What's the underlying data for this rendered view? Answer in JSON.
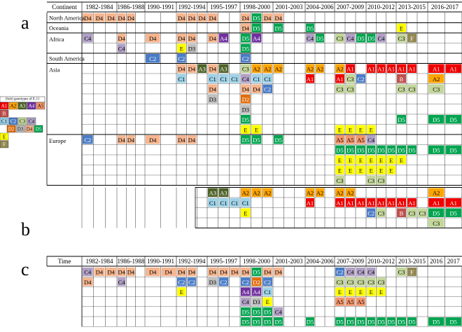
{
  "panel_labels": {
    "a": "a",
    "b": "b",
    "c": "c"
  },
  "legend": {
    "title": "(Sub) genotypes of E-11",
    "rows": [
      [
        "A1",
        "A2",
        "A3",
        "A4",
        "A5"
      ],
      [
        "B"
      ],
      [
        "C1",
        "C2",
        "C3",
        "C4"
      ],
      [
        "D2",
        "D3",
        "D4",
        "D5"
      ],
      [
        "E"
      ],
      [
        "F"
      ]
    ]
  },
  "colors": {
    "A1": "#f00000",
    "A2": "#ffa500",
    "A3": "#4f6228",
    "A4": "#7030a0",
    "A5": "#f4956b",
    "B": "#c0504d",
    "C1": "#9dd2e8",
    "C2": "#4a7cc6",
    "C3": "#c4d79b",
    "C4": "#b1a0c7",
    "D2": "#e36c09",
    "D3": "#bfbfbf",
    "D4": "#f7b58e",
    "D5": "#00a550",
    "E": "#ffff00",
    "F": "#938953"
  },
  "time_columns": [
    "1982-1984",
    "1986-1988",
    "1990-1991",
    "1992-1994",
    "1995-1997",
    "1998-2000",
    "2001-2003",
    "2004-2006",
    "2007-2009",
    "2010-2012",
    "2013-2015",
    "2016-2017"
  ],
  "panel_a": {
    "header_label": "Continent",
    "groups": [
      {
        "name": "North America",
        "rows": [
          [
            [
              "D4",
              "D4",
              "D4"
            ],
            [
              "D4",
              "D4"
            ],
            [],
            [
              "D4",
              "D4",
              "D4"
            ],
            [
              "D4"
            ],
            [
              "D4",
              "D5",
              "D4"
            ],
            [
              "D4"
            ],
            [],
            [],
            [],
            [],
            []
          ]
        ]
      },
      {
        "name": "Oceania",
        "rows": [
          [
            [],
            [],
            [],
            [],
            [],
            [
              "D4",
              "D5"
            ],
            [
              "D5"
            ],
            [
              "D5"
            ],
            [],
            [],
            [
              "E"
            ],
            []
          ]
        ]
      },
      {
        "name": "Africa",
        "rows": [
          [
            [
              "C4"
            ],
            [
              "D4"
            ],
            [
              "D4"
            ],
            [
              "D4",
              "D4"
            ],
            [
              "D4",
              "A4"
            ],
            [
              "D5",
              "A4"
            ],
            [],
            [
              "C4",
              "D5"
            ],
            [
              "C3",
              "C4",
              "D5"
            ],
            [
              "D5",
              "C4"
            ],
            [
              "C3",
              "F"
            ],
            []
          ],
          [
            [],
            [
              "C4"
            ],
            [],
            [
              "E",
              "D3"
            ],
            [],
            [
              "D5"
            ],
            [],
            [],
            [],
            [],
            [],
            []
          ]
        ]
      },
      {
        "name": "South America",
        "rows": [
          [
            [],
            [],
            [
              "C2"
            ],
            [
              "C2"
            ],
            [],
            [
              "C2"
            ],
            [],
            [],
            [],
            [],
            [],
            []
          ]
        ]
      },
      {
        "name": "Asia",
        "rows": [
          [
            [],
            [],
            [],
            [
              "D4",
              "D4",
              "A3"
            ],
            [
              "D4",
              "A3"
            ],
            [
              "C3",
              "A2",
              "A2"
            ],
            [
              "A2"
            ],
            [
              "A2",
              "A2"
            ],
            [
              "A2",
              "A1"
            ],
            [
              "A1",
              "A1",
              "A1"
            ],
            [
              "A1",
              "A1"
            ],
            [
              "A1",
              "A1"
            ]
          ],
          [
            [],
            [],
            [],
            [
              "C1"
            ],
            [
              "C1",
              "C1",
              "C1"
            ],
            [
              "C4",
              "C1",
              "C1"
            ],
            [],
            [
              "A1"
            ],
            [
              "A1",
              "C3",
              "C2"
            ],
            [],
            [
              "B"
            ],
            [
              "A2"
            ]
          ],
          [
            [],
            [],
            [],
            [],
            [
              "D4"
            ],
            [
              "D4",
              "D4",
              "C2"
            ],
            [],
            [],
            [
              "C3",
              "C3"
            ],
            [],
            [
              "C3",
              "C3"
            ],
            [
              "C3"
            ]
          ],
          [
            [],
            [],
            [],
            [],
            [
              "D3"
            ],
            [
              "D2"
            ],
            [],
            [],
            [],
            [],
            [],
            []
          ],
          [
            [],
            [],
            [],
            [],
            [],
            [
              "D3"
            ],
            [],
            [],
            [],
            [],
            [],
            []
          ],
          [
            [],
            [],
            [],
            [],
            [],
            [
              "D5"
            ],
            [],
            [],
            [],
            [],
            [
              "D5"
            ],
            [
              "D5",
              "D5"
            ]
          ],
          [
            [],
            [],
            [],
            [],
            [],
            [
              "E",
              "E"
            ],
            [],
            [],
            [
              "E",
              "E",
              "E"
            ],
            [
              "E"
            ],
            [],
            []
          ]
        ]
      },
      {
        "name": "Europe",
        "rows": [
          [
            [
              "C2"
            ],
            [
              "D4",
              "D4"
            ],
            [
              "D4"
            ],
            [
              "D4",
              "D4"
            ],
            [],
            [
              "D5",
              "D5"
            ],
            [
              "D5"
            ],
            [],
            [
              "A5",
              "A5",
              "A5"
            ],
            [
              "C4"
            ],
            [],
            []
          ],
          [
            [],
            [],
            [],
            [],
            [],
            [],
            [],
            [],
            [
              "D5",
              "D5",
              "D5"
            ],
            [
              "D5",
              "D5",
              "D5"
            ],
            [
              "D5",
              "D5"
            ],
            [
              "D5",
              "D5"
            ]
          ],
          [
            [],
            [],
            [],
            [],
            [],
            [],
            [],
            [],
            [
              "E",
              "E",
              "E"
            ],
            [
              "E",
              "E",
              "E"
            ],
            [
              "E"
            ],
            []
          ],
          [
            [],
            [],
            [],
            [],
            [],
            [],
            [],
            [],
            [
              "E",
              "E",
              "E"
            ],
            [
              "E",
              "E",
              "E"
            ],
            [],
            []
          ],
          [
            [],
            [],
            [],
            [],
            [],
            [],
            [],
            [],
            [
              "C3"
            ],
            [
              "C3",
              "C3"
            ],
            [],
            []
          ]
        ]
      }
    ]
  },
  "panel_b": {
    "rows": [
      [
        [],
        [],
        [],
        [],
        [
          "A3",
          "A3"
        ],
        [
          "A2",
          "A2",
          "A2"
        ],
        [],
        [
          "A2",
          "A2"
        ],
        [
          "A2",
          "A2"
        ],
        [],
        [],
        [
          "A2"
        ]
      ],
      [
        [],
        [],
        [],
        [],
        [
          "C1",
          "C1",
          "C1",
          "C1"
        ],
        [
          "C1"
        ],
        [],
        [
          "A1"
        ],
        [
          "A1",
          "A1",
          "A1"
        ],
        [
          "A1",
          "A1",
          "A1"
        ],
        [
          "A1",
          "A1"
        ],
        [
          "A1",
          "A1"
        ]
      ],
      [
        [],
        [],
        [],
        [],
        [],
        [
          "E"
        ],
        [],
        [],
        [],
        [
          "C2",
          "C3"
        ],
        [
          "B",
          "C3",
          "C3"
        ],
        [
          "D5",
          "D5"
        ]
      ],
      [
        [],
        [],
        [],
        [],
        [],
        [],
        [],
        [],
        [],
        [],
        [],
        [
          "C3"
        ]
      ]
    ]
  },
  "panel_c": {
    "header_label": "Time",
    "time_columns_last": [
      "2016",
      "2017"
    ],
    "rows": [
      [
        [
          "C4",
          "D4",
          "D4"
        ],
        [
          "D4",
          "D4"
        ],
        [
          "D4",
          "D4"
        ],
        [
          "D4",
          "D4"
        ],
        [
          "D4",
          "D4",
          "D4"
        ],
        [
          "D4",
          "D5",
          "D4"
        ],
        [
          "D4"
        ],
        [],
        [
          "C2",
          "C4",
          "C4"
        ],
        [
          "C4"
        ],
        [
          "C3",
          "F"
        ],
        []
      ],
      [
        [
          "D4"
        ],
        [
          "C4"
        ],
        [],
        [
          "C2",
          "C2"
        ],
        [
          "D3",
          "C2"
        ],
        [
          "C2",
          "D2",
          "C2"
        ],
        [],
        [],
        [
          "C3",
          "C3",
          "C3"
        ],
        [
          "C3",
          "C3"
        ],
        [],
        []
      ],
      [
        [],
        [],
        [],
        [
          "E"
        ],
        [],
        [
          "A4",
          "A4",
          "C1"
        ],
        [],
        [],
        [
          "E",
          "E",
          "E"
        ],
        [
          "E",
          "E"
        ],
        [],
        []
      ],
      [
        [],
        [],
        [],
        [],
        [],
        [
          "C4",
          "D3",
          "E"
        ],
        [],
        [],
        [
          "A5",
          "A5",
          "A5"
        ],
        [],
        [],
        []
      ],
      [
        [],
        [],
        [],
        [],
        [],
        [
          "D5",
          "D5",
          "D5"
        ],
        [
          "C4"
        ],
        [],
        [],
        [],
        [],
        []
      ],
      [
        [],
        [],
        [],
        [],
        [],
        [
          "D5",
          "D5",
          "D5"
        ],
        [
          "D5"
        ],
        [
          "D5"
        ],
        [
          "D5",
          "D5",
          "D5"
        ],
        [
          "D5",
          "D5",
          "D5"
        ],
        [
          "D5",
          "D5"
        ],
        [
          "D5",
          "D5"
        ]
      ]
    ]
  }
}
